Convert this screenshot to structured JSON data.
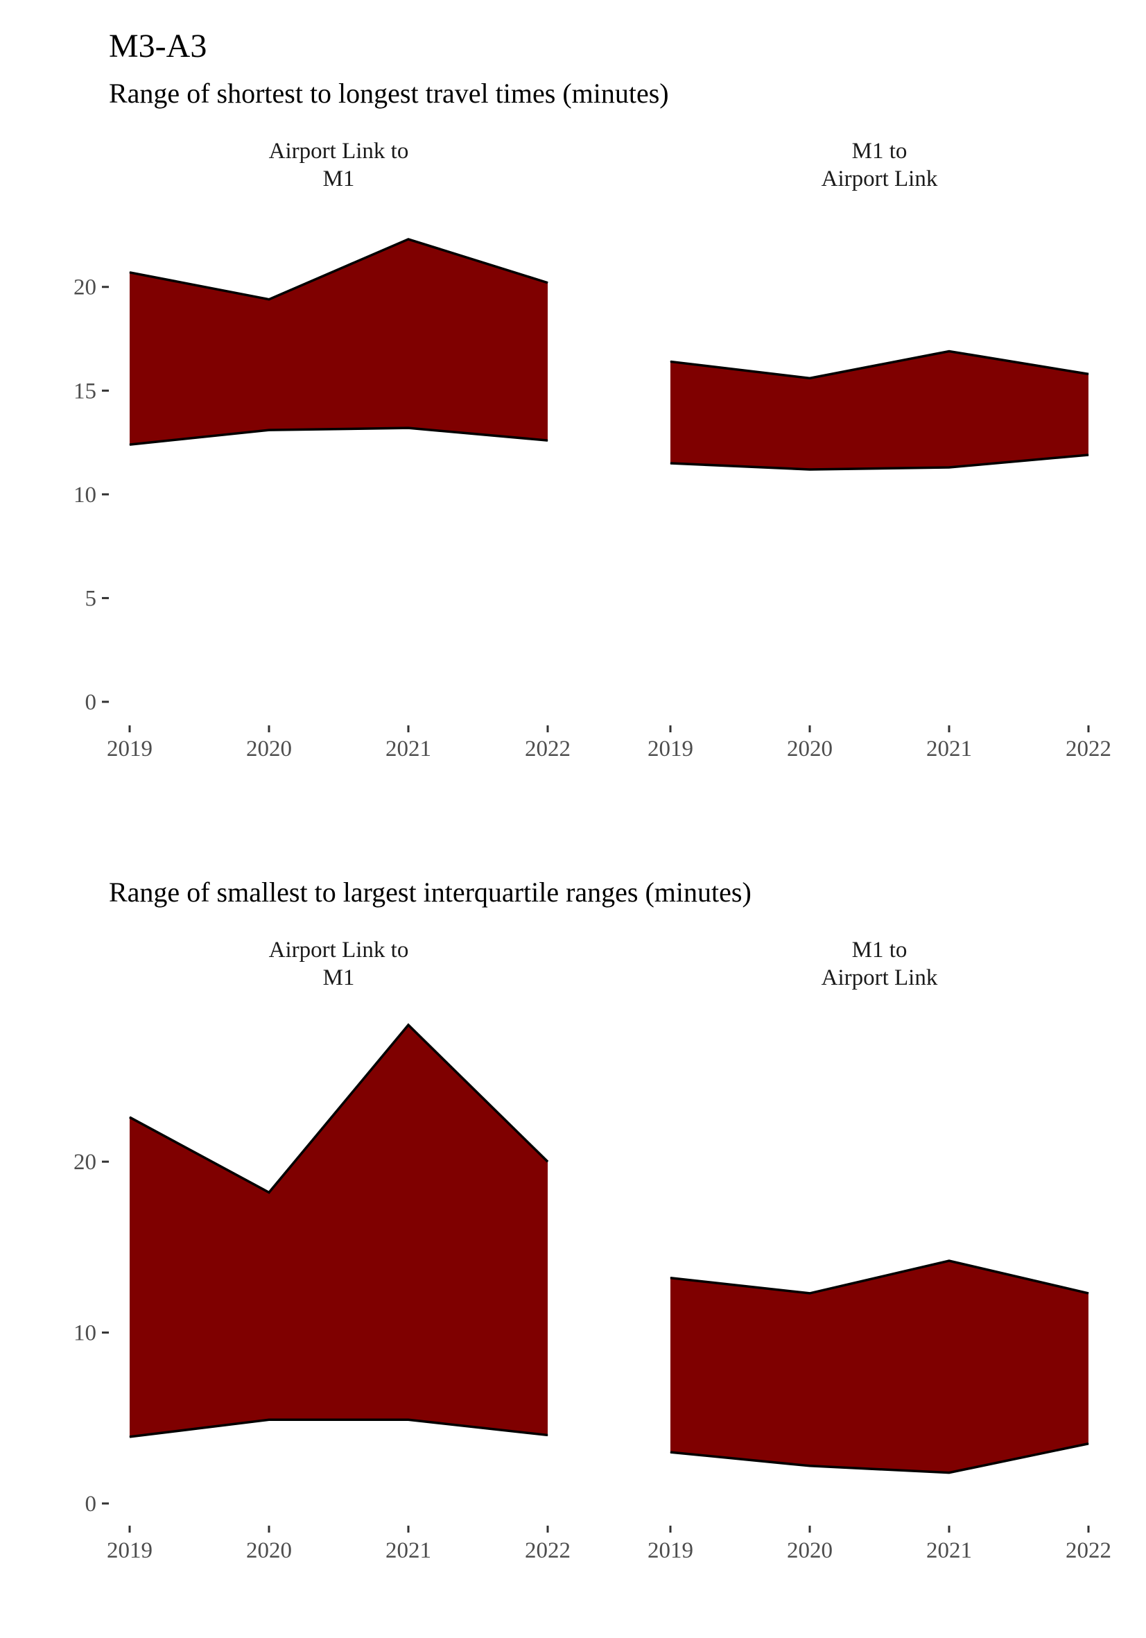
{
  "chart_data": {
    "type": "area",
    "title": "M3-A3",
    "fill_color": "#7f0000",
    "outline_color": "#000000",
    "panels": [
      {
        "subtitle": "Range of shortest to longest travel times (minutes)",
        "ylim": [
          0,
          23
        ],
        "yticks": [
          0,
          5,
          10,
          15,
          20
        ],
        "facets": [
          {
            "strip": [
              "Airport Link to",
              "M1"
            ],
            "x": [
              "2019",
              "2020",
              "2021",
              "2022"
            ],
            "low": [
              12.4,
              13.1,
              13.2,
              12.6
            ],
            "high": [
              20.7,
              19.4,
              22.3,
              20.2
            ]
          },
          {
            "strip": [
              "M1 to",
              "Airport Link"
            ],
            "x": [
              "2019",
              "2020",
              "2021",
              "2022"
            ],
            "low": [
              11.5,
              11.2,
              11.3,
              11.9
            ],
            "high": [
              16.4,
              15.6,
              16.9,
              15.8
            ]
          }
        ]
      },
      {
        "subtitle": "Range of smallest to largest interquartile ranges (minutes)",
        "ylim": [
          0,
          28
        ],
        "yticks": [
          0,
          10,
          20
        ],
        "facets": [
          {
            "strip": [
              "Airport Link to",
              "M1"
            ],
            "x": [
              "2019",
              "2020",
              "2021",
              "2022"
            ],
            "low": [
              3.9,
              4.9,
              4.9,
              4.0
            ],
            "high": [
              22.6,
              18.2,
              28.0,
              20.0
            ]
          },
          {
            "strip": [
              "M1 to",
              "Airport Link"
            ],
            "x": [
              "2019",
              "2020",
              "2021",
              "2022"
            ],
            "low": [
              3.0,
              2.2,
              1.8,
              3.5
            ],
            "high": [
              13.2,
              12.3,
              14.2,
              12.3
            ]
          }
        ]
      }
    ]
  }
}
